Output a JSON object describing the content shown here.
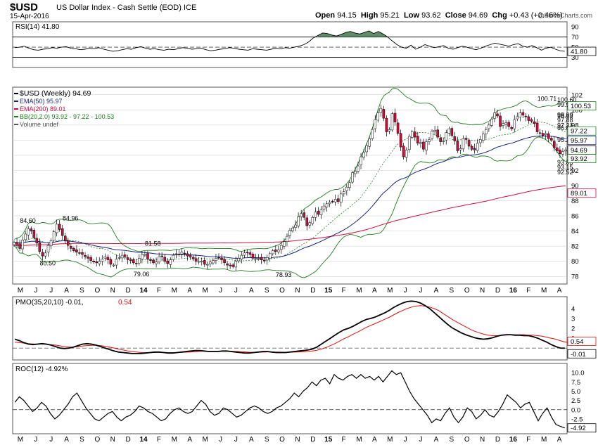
{
  "header": {
    "symbol": "$USD",
    "name": "US Dollar Index - Cash Settle (EOD)",
    "exchange": "ICE",
    "date": "15-Apr-2016",
    "open_label": "Open",
    "open": "94.15",
    "high_label": "High",
    "high": "95.21",
    "low_label": "Low",
    "low": "93.62",
    "close_label": "Close",
    "close": "94.69",
    "chg_label": "Chg",
    "chg": "+0.43 (+0.46%)",
    "brand": "@StockCharts.com"
  },
  "colors": {
    "up": "#ffffff",
    "down": "#c8103c",
    "candle_outline": "#000000",
    "ema50": "#1a237e",
    "ema200": "#c8103c",
    "bb": "#1e7d1e",
    "rsi_fill": "#4f7f5a",
    "pmo": "#000000",
    "pmo_signal": "#e01010",
    "roc": "#000000",
    "grid": "#cccccc"
  },
  "chart_data": [
    {
      "type": "line",
      "panel": "rsi",
      "label": "RSI(14) 41.80",
      "ylim": [
        10,
        100
      ],
      "yticks": [
        30,
        50,
        70,
        90
      ],
      "levels": [
        30,
        70
      ],
      "last_value": "41.80",
      "values": [
        49,
        50,
        52,
        48,
        45,
        44,
        46,
        47,
        49,
        48,
        50,
        51,
        48,
        47,
        45,
        46,
        48,
        47,
        49,
        46,
        44,
        42,
        43,
        45,
        47,
        46,
        49,
        51,
        48,
        46,
        47,
        45,
        44,
        46,
        45,
        47,
        49,
        48,
        46,
        47,
        48,
        45,
        43,
        44,
        46,
        47,
        49,
        48,
        46,
        45,
        44,
        47,
        46,
        45,
        44,
        46,
        48,
        47,
        49,
        48,
        50,
        52,
        55,
        60,
        68,
        73,
        78,
        77,
        74,
        72,
        75,
        79,
        81,
        78,
        76,
        79,
        82,
        77,
        81,
        76,
        70,
        62,
        55,
        50,
        48,
        54,
        46,
        50,
        55,
        52,
        49,
        51,
        53,
        48,
        46,
        49,
        52,
        50,
        47,
        45,
        48,
        52,
        55,
        58,
        56,
        54,
        52,
        55,
        57,
        52,
        50,
        53,
        49,
        44,
        48,
        50,
        46,
        43,
        42
      ]
    },
    {
      "type": "candlestick",
      "panel": "price",
      "label": "$USD (Weekly) 94.69",
      "ylim": [
        77,
        103
      ],
      "yticks": [
        78,
        80,
        82,
        84,
        86,
        88,
        90,
        92,
        94,
        96,
        98,
        100,
        102
      ],
      "x_labels": [
        "M",
        "J",
        "J",
        "A",
        "S",
        "O",
        "N",
        "D",
        "14",
        "F",
        "M",
        "A",
        "M",
        "J",
        "J",
        "A",
        "S",
        "O",
        "N",
        "D",
        "15",
        "F",
        "M",
        "A",
        "M",
        "J",
        "J",
        "A",
        "S",
        "O",
        "N",
        "D",
        "16",
        "F",
        "M",
        "A"
      ],
      "annotations": [
        {
          "value": "84.60",
          "index": 5
        },
        {
          "value": "80.50",
          "index": 12
        },
        {
          "value": "84.96",
          "index": 20
        },
        {
          "value": "79.06",
          "index": 45
        },
        {
          "value": "81.58",
          "index": 49
        },
        {
          "value": "78.93",
          "index": 95
        },
        {
          "value": "100.71",
          "index": 187
        },
        {
          "value": "97.88",
          "index": 211
        },
        {
          "value": "93.15",
          "index": 203
        },
        {
          "value": "98.43",
          "index": 221
        },
        {
          "value": "92.52",
          "index": 231
        },
        {
          "value": "96.88",
          "index": 240
        },
        {
          "value": "93.83",
          "index": 250
        },
        {
          "value": "100.60",
          "index": 262
        },
        {
          "value": "97.21",
          "index": 263
        },
        {
          "value": "99.95",
          "index": 276
        },
        {
          "value": "98.60",
          "index": 285
        },
        {
          "value": "95.28",
          "index": 283
        }
      ],
      "legend": [
        {
          "text": "$USD (Weekly) 94.69"
        },
        {
          "text": "EMA(50) 95.97"
        },
        {
          "text": "EMA(200) 89.01"
        },
        {
          "text": "BB(20,2.0) 93.92 - 97.22 - 100.53"
        },
        {
          "text": "Volume undef"
        }
      ],
      "right_tags": [
        {
          "value": "100.53"
        },
        {
          "value": "97.22"
        },
        {
          "value": "95.97"
        },
        {
          "value": "94.69"
        },
        {
          "value": "93.92"
        },
        {
          "value": "89.01"
        }
      ],
      "close": [
        82.5,
        82.2,
        81.7,
        82.8,
        83.6,
        84.3,
        84.0,
        83.1,
        82.4,
        81.3,
        80.7,
        81.1,
        82.1,
        82.7,
        83.9,
        84.9,
        84.2,
        83.4,
        82.7,
        82.1,
        81.7,
        81.4,
        81.2,
        81.1,
        80.9,
        80.6,
        80.4,
        80.1,
        79.9,
        79.8,
        80.0,
        80.3,
        80.6,
        80.2,
        79.6,
        79.5,
        80.3,
        80.5,
        80.8,
        80.6,
        80.2,
        80.1,
        79.8,
        79.7,
        80.4,
        80.9,
        80.9,
        80.3,
        80.1,
        79.8,
        79.9,
        80.6,
        80.6,
        80.0,
        79.7,
        80.2,
        80.8,
        81.0,
        80.9,
        81.2,
        81.0,
        80.7,
        80.6,
        80.3,
        80.0,
        80.0,
        80.0,
        79.6,
        79.6,
        79.9,
        80.1,
        80.4,
        80.5,
        80.2,
        79.8,
        79.5,
        79.4,
        79.3,
        80.0,
        80.4,
        80.8,
        81.1,
        81.2,
        80.9,
        80.4,
        80.4,
        80.4,
        80.2,
        80.1,
        80.5,
        81.0,
        81.4,
        81.3,
        81.5,
        82.1,
        82.6,
        83.3,
        84.1,
        84.4,
        84.8,
        85.9,
        86.3,
        85.8,
        84.7,
        85.1,
        85.8,
        86.5,
        86.2,
        86.8,
        87.3,
        87.6,
        87.8,
        87.9,
        88.2,
        87.9,
        88.9,
        89.2,
        89.8,
        90.4,
        91.7,
        91.9,
        92.6,
        93.8,
        94.4,
        95.3,
        96.2,
        97.4,
        98.7,
        99.6,
        100.2,
        98.9,
        97.1,
        97.4,
        99.5,
        98.4,
        96.9,
        95.1,
        93.8,
        94.7,
        96.5,
        97.1,
        96.4,
        95.6,
        95.7,
        94.8,
        95.8,
        96.1,
        97.2,
        97.3,
        96.4,
        95.8,
        95.9,
        97.0,
        97.5,
        96.6,
        95.9,
        94.6,
        94.9,
        96.2,
        96.1,
        95.2,
        94.8,
        94.7,
        95.6,
        96.1,
        96.8,
        97.4,
        98.0,
        98.8,
        99.6,
        99.2,
        97.8,
        98.2,
        98.3,
        97.8,
        97.5,
        98.7,
        99.1,
        99.6,
        99.3,
        99.1,
        98.6,
        98.5,
        98.2,
        97.1,
        96.9,
        96.6,
        96.9,
        96.2,
        96.0,
        95.0,
        94.6,
        94.2,
        94.5,
        94.7
      ],
      "series": [
        {
          "name": "EMA(50) 95.97"
        },
        {
          "name": "EMA(200) 89.01"
        },
        {
          "name": "BB(20,2.0) 93.92 - 97.22 - 100.53"
        }
      ]
    },
    {
      "type": "line",
      "panel": "pmo",
      "label": "PMO(35,20,10) -0.01,",
      "label_signal": "0.54",
      "ylim": [
        -1.2,
        5.2
      ],
      "yticks": [
        -0.01,
        0.54,
        1,
        2,
        3,
        4
      ],
      "tick_labels": [
        "1",
        "2",
        "3",
        "4"
      ],
      "right_tags": [
        {
          "value": "0.54"
        },
        {
          "value": "-0.01"
        }
      ],
      "pmo": [
        0.9,
        0.75,
        0.55,
        0.4,
        0.35,
        0.4,
        0.45,
        0.4,
        0.3,
        0.15,
        0.0,
        -0.05,
        0.0,
        0.1,
        0.25,
        0.4,
        0.45,
        0.4,
        0.3,
        0.15,
        0.0,
        -0.15,
        -0.3,
        -0.4,
        -0.45,
        -0.5,
        -0.55,
        -0.55,
        -0.55,
        -0.5,
        -0.45,
        -0.4,
        -0.4,
        -0.45,
        -0.5,
        -0.5,
        -0.45,
        -0.4,
        -0.35,
        -0.3,
        -0.25,
        -0.25,
        -0.3,
        -0.35,
        -0.35,
        -0.35,
        -0.3,
        -0.3,
        -0.35,
        -0.4,
        -0.45,
        -0.5,
        -0.5,
        -0.45,
        -0.4,
        -0.35,
        -0.35,
        -0.4,
        -0.45,
        -0.45,
        -0.45,
        -0.4,
        -0.35,
        -0.3,
        -0.25,
        -0.2,
        -0.1,
        0.1,
        0.4,
        0.7,
        1.0,
        1.3,
        1.6,
        1.85,
        2.0,
        2.2,
        2.45,
        2.7,
        2.9,
        3.0,
        3.15,
        3.35,
        3.55,
        3.8,
        4.1,
        4.35,
        4.55,
        4.7,
        4.75,
        4.7,
        4.55,
        4.3,
        4.0,
        3.6,
        3.2,
        2.8,
        2.4,
        2.05,
        1.8,
        1.55,
        1.35,
        1.2,
        1.05,
        0.95,
        0.9,
        0.95,
        1.05,
        1.2,
        1.3,
        1.35,
        1.35,
        1.3,
        1.3,
        1.25,
        1.25,
        1.15,
        1.0,
        0.8,
        0.6,
        0.35,
        0.15,
        0.0,
        -0.01
      ],
      "signal": [
        0.6,
        0.55,
        0.5,
        0.45,
        0.42,
        0.4,
        0.4,
        0.38,
        0.35,
        0.3,
        0.22,
        0.15,
        0.1,
        0.1,
        0.15,
        0.2,
        0.25,
        0.28,
        0.28,
        0.25,
        0.18,
        0.1,
        0.0,
        -0.1,
        -0.2,
        -0.28,
        -0.35,
        -0.4,
        -0.45,
        -0.46,
        -0.46,
        -0.45,
        -0.44,
        -0.44,
        -0.45,
        -0.46,
        -0.46,
        -0.44,
        -0.42,
        -0.39,
        -0.36,
        -0.33,
        -0.32,
        -0.32,
        -0.33,
        -0.33,
        -0.33,
        -0.32,
        -0.33,
        -0.34,
        -0.36,
        -0.39,
        -0.42,
        -0.43,
        -0.42,
        -0.41,
        -0.39,
        -0.39,
        -0.4,
        -0.41,
        -0.42,
        -0.42,
        -0.41,
        -0.39,
        -0.37,
        -0.34,
        -0.3,
        -0.22,
        -0.1,
        0.05,
        0.25,
        0.45,
        0.7,
        0.95,
        1.15,
        1.4,
        1.6,
        1.85,
        2.1,
        2.3,
        2.5,
        2.7,
        2.9,
        3.1,
        3.35,
        3.6,
        3.8,
        4.0,
        4.15,
        4.25,
        4.3,
        4.25,
        4.15,
        4.0,
        3.8,
        3.5,
        3.2,
        2.9,
        2.65,
        2.4,
        2.15,
        1.9,
        1.7,
        1.55,
        1.4,
        1.3,
        1.25,
        1.25,
        1.3,
        1.3,
        1.35,
        1.35,
        1.35,
        1.35,
        1.3,
        1.3,
        1.25,
        1.2,
        1.1,
        1.0,
        0.9,
        0.75,
        0.62,
        0.54
      ]
    },
    {
      "type": "line",
      "panel": "roc",
      "label": "ROC(12) -4.92%",
      "ylim": [
        -6.5,
        12.5
      ],
      "yticks": [
        -2.5,
        0,
        2.5,
        5,
        7.5,
        10
      ],
      "tick_labels": [
        "-2.5",
        "0.0",
        "2.5",
        "5.0",
        "7.5",
        "10.0"
      ],
      "last_value": "-4.92",
      "values": [
        2.0,
        3.5,
        2.5,
        1.0,
        -0.5,
        0.5,
        2.0,
        1.0,
        -1.0,
        -2.5,
        -1.5,
        0.0,
        1.5,
        3.5,
        4.5,
        2.5,
        0.5,
        -1.0,
        -2.5,
        -3.0,
        -2.0,
        -1.0,
        -0.5,
        -2.0,
        -3.0,
        -2.0,
        -1.5,
        -0.5,
        1.0,
        0.5,
        -0.5,
        -1.0,
        -2.0,
        -3.0,
        -2.5,
        -1.0,
        0.0,
        0.5,
        -0.5,
        -1.0,
        -0.5,
        1.0,
        2.5,
        1.5,
        -0.5,
        -1.5,
        -1.0,
        0.5,
        0.0,
        -1.0,
        -2.0,
        -1.5,
        -0.5,
        0.5,
        1.0,
        0.5,
        -0.5,
        -1.0,
        -0.5,
        0.5,
        1.0,
        2.0,
        3.0,
        4.5,
        3.5,
        5.0,
        6.0,
        7.5,
        6.5,
        8.0,
        8.5,
        7.0,
        9.5,
        8.5,
        8.0,
        9.0,
        9.5,
        8.5,
        9.5,
        8.5,
        9.0,
        8.0,
        9.0,
        7.5,
        9.0,
        10.5,
        9.5,
        10.0,
        7.5,
        5.0,
        3.0,
        1.5,
        0.0,
        -1.5,
        -3.5,
        -2.5,
        -3.0,
        -1.0,
        0.5,
        -2.0,
        -3.5,
        -2.0,
        0.5,
        -0.5,
        -2.5,
        -1.5,
        0.0,
        -1.5,
        -2.0,
        -0.5,
        1.5,
        4.0,
        3.0,
        2.0,
        0.5,
        1.5,
        2.0,
        -0.5,
        -3.0,
        -1.0,
        0.5,
        -2.0,
        -4.0,
        -4.5,
        -4.92
      ]
    }
  ]
}
